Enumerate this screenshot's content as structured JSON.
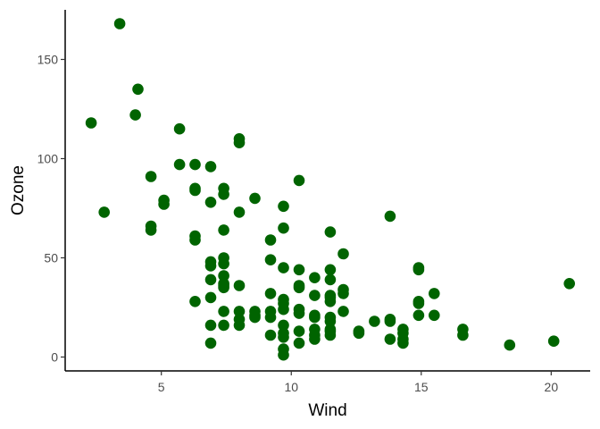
{
  "chart_data": {
    "type": "scatter",
    "title": "",
    "xlabel": "Wind",
    "ylabel": "Ozone",
    "xlim": [
      1.3,
      21.5
    ],
    "ylim": [
      -7,
      175
    ],
    "xticks": [
      5,
      10,
      15,
      20
    ],
    "yticks": [
      0,
      50,
      100,
      150
    ],
    "grid": false,
    "legend": "none",
    "point_color": "#006400",
    "points": [
      {
        "x": 3.4,
        "y": 168
      },
      {
        "x": 4.1,
        "y": 135
      },
      {
        "x": 4.0,
        "y": 122
      },
      {
        "x": 2.3,
        "y": 118
      },
      {
        "x": 5.7,
        "y": 115
      },
      {
        "x": 8.0,
        "y": 110
      },
      {
        "x": 8.0,
        "y": 108
      },
      {
        "x": 5.7,
        "y": 97
      },
      {
        "x": 6.3,
        "y": 97
      },
      {
        "x": 6.9,
        "y": 96
      },
      {
        "x": 4.6,
        "y": 91
      },
      {
        "x": 10.3,
        "y": 89
      },
      {
        "x": 6.3,
        "y": 85
      },
      {
        "x": 7.4,
        "y": 85
      },
      {
        "x": 6.3,
        "y": 84
      },
      {
        "x": 7.4,
        "y": 82
      },
      {
        "x": 8.6,
        "y": 80
      },
      {
        "x": 5.1,
        "y": 79
      },
      {
        "x": 6.9,
        "y": 78
      },
      {
        "x": 5.1,
        "y": 77
      },
      {
        "x": 9.7,
        "y": 76
      },
      {
        "x": 2.8,
        "y": 73
      },
      {
        "x": 8.0,
        "y": 73
      },
      {
        "x": 13.8,
        "y": 71
      },
      {
        "x": 4.6,
        "y": 66
      },
      {
        "x": 9.7,
        "y": 65
      },
      {
        "x": 4.6,
        "y": 64
      },
      {
        "x": 7.4,
        "y": 64
      },
      {
        "x": 11.5,
        "y": 63
      },
      {
        "x": 6.3,
        "y": 61
      },
      {
        "x": 6.3,
        "y": 59
      },
      {
        "x": 9.2,
        "y": 59
      },
      {
        "x": 12.0,
        "y": 52
      },
      {
        "x": 7.4,
        "y": 50
      },
      {
        "x": 9.2,
        "y": 49
      },
      {
        "x": 6.9,
        "y": 48
      },
      {
        "x": 7.4,
        "y": 47
      },
      {
        "x": 6.9,
        "y": 46
      },
      {
        "x": 9.7,
        "y": 45
      },
      {
        "x": 14.9,
        "y": 45
      },
      {
        "x": 10.3,
        "y": 44
      },
      {
        "x": 11.5,
        "y": 44
      },
      {
        "x": 14.9,
        "y": 44
      },
      {
        "x": 7.4,
        "y": 41
      },
      {
        "x": 10.9,
        "y": 40
      },
      {
        "x": 6.9,
        "y": 39
      },
      {
        "x": 11.5,
        "y": 39
      },
      {
        "x": 7.4,
        "y": 37
      },
      {
        "x": 20.7,
        "y": 37
      },
      {
        "x": 7.4,
        "y": 36
      },
      {
        "x": 8.0,
        "y": 36
      },
      {
        "x": 10.3,
        "y": 36
      },
      {
        "x": 7.4,
        "y": 35
      },
      {
        "x": 10.3,
        "y": 35
      },
      {
        "x": 12.0,
        "y": 34
      },
      {
        "x": 12.0,
        "y": 32
      },
      {
        "x": 9.2,
        "y": 32
      },
      {
        "x": 15.5,
        "y": 32
      },
      {
        "x": 10.9,
        "y": 31
      },
      {
        "x": 11.5,
        "y": 31
      },
      {
        "x": 6.9,
        "y": 30
      },
      {
        "x": 11.5,
        "y": 30
      },
      {
        "x": 9.7,
        "y": 29
      },
      {
        "x": 6.3,
        "y": 28
      },
      {
        "x": 11.5,
        "y": 28
      },
      {
        "x": 14.9,
        "y": 28
      },
      {
        "x": 9.7,
        "y": 27
      },
      {
        "x": 14.9,
        "y": 27
      },
      {
        "x": 10.3,
        "y": 24
      },
      {
        "x": 9.7,
        "y": 24
      },
      {
        "x": 7.4,
        "y": 23
      },
      {
        "x": 8.0,
        "y": 23
      },
      {
        "x": 8.6,
        "y": 23
      },
      {
        "x": 9.2,
        "y": 23
      },
      {
        "x": 12.0,
        "y": 23
      },
      {
        "x": 10.3,
        "y": 22
      },
      {
        "x": 8.6,
        "y": 21
      },
      {
        "x": 10.9,
        "y": 21
      },
      {
        "x": 14.9,
        "y": 21
      },
      {
        "x": 15.5,
        "y": 21
      },
      {
        "x": 8.6,
        "y": 20
      },
      {
        "x": 10.9,
        "y": 20
      },
      {
        "x": 11.5,
        "y": 20
      },
      {
        "x": 9.2,
        "y": 20
      },
      {
        "x": 13.8,
        "y": 19
      },
      {
        "x": 8.0,
        "y": 19
      },
      {
        "x": 11.5,
        "y": 18
      },
      {
        "x": 13.2,
        "y": 18
      },
      {
        "x": 13.8,
        "y": 18
      },
      {
        "x": 6.9,
        "y": 16
      },
      {
        "x": 7.4,
        "y": 16
      },
      {
        "x": 8.0,
        "y": 16
      },
      {
        "x": 9.7,
        "y": 16
      },
      {
        "x": 10.9,
        "y": 14
      },
      {
        "x": 11.5,
        "y": 14
      },
      {
        "x": 14.3,
        "y": 14
      },
      {
        "x": 16.6,
        "y": 14
      },
      {
        "x": 10.3,
        "y": 13
      },
      {
        "x": 11.5,
        "y": 13
      },
      {
        "x": 12.6,
        "y": 13
      },
      {
        "x": 9.7,
        "y": 12
      },
      {
        "x": 12.6,
        "y": 12
      },
      {
        "x": 14.3,
        "y": 12
      },
      {
        "x": 9.2,
        "y": 11
      },
      {
        "x": 10.9,
        "y": 11
      },
      {
        "x": 11.5,
        "y": 11
      },
      {
        "x": 16.6,
        "y": 11
      },
      {
        "x": 9.7,
        "y": 10
      },
      {
        "x": 10.9,
        "y": 9
      },
      {
        "x": 13.8,
        "y": 9
      },
      {
        "x": 14.3,
        "y": 9
      },
      {
        "x": 20.1,
        "y": 8
      },
      {
        "x": 6.9,
        "y": 7
      },
      {
        "x": 10.3,
        "y": 7
      },
      {
        "x": 14.3,
        "y": 7
      },
      {
        "x": 18.4,
        "y": 6
      },
      {
        "x": 9.7,
        "y": 4
      },
      {
        "x": 9.7,
        "y": 1
      }
    ]
  }
}
